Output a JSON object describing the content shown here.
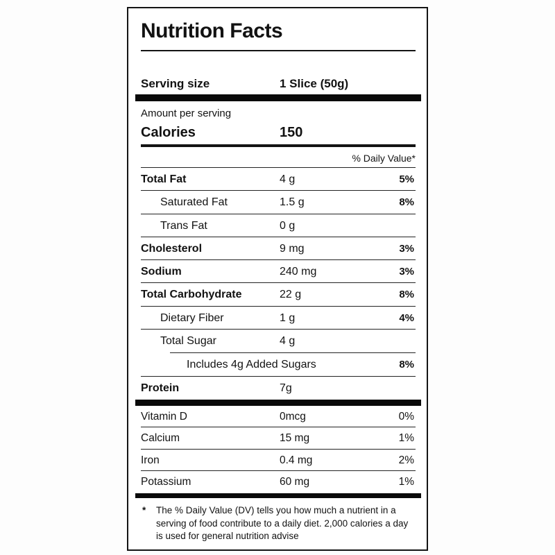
{
  "colors": {
    "ink": "#121212",
    "background": "#ffffff",
    "rule": "#141414"
  },
  "nutrition": {
    "title": "Nutrition Facts",
    "serving_label": "Serving size",
    "serving_value": "1 Slice (50g)",
    "amount_per_serving": "Amount per serving",
    "calories_label": "Calories",
    "calories_value": "150",
    "daily_value_header": "% Daily Value*",
    "rows": [
      {
        "label": "Total Fat",
        "value": "4 g",
        "pct": "5%"
      },
      {
        "label": "Saturated Fat",
        "value": "1.5 g",
        "pct": "8%"
      },
      {
        "label": "Trans Fat",
        "value": "0 g",
        "pct": ""
      },
      {
        "label": "Cholesterol",
        "value": "9 mg",
        "pct": "3%"
      },
      {
        "label": "Sodium",
        "value": "240 mg",
        "pct": "3%"
      },
      {
        "label": "Total Carbohydrate",
        "value": "22 g",
        "pct": "8%"
      },
      {
        "label": "Dietary Fiber",
        "value": "1 g",
        "pct": "4%"
      },
      {
        "label": "Total Sugar",
        "value": "4 g",
        "pct": ""
      },
      {
        "label": "Includes 4g Added Sugars",
        "value": "",
        "pct": "8%"
      },
      {
        "label": "Protein",
        "value": "7g",
        "pct": ""
      }
    ],
    "vitamins": [
      {
        "label": "Vitamin D",
        "value": "0mcg",
        "pct": "0%"
      },
      {
        "label": "Calcium",
        "value": "15 mg",
        "pct": "1%"
      },
      {
        "label": "Iron",
        "value": "0.4 mg",
        "pct": "2%"
      },
      {
        "label": "Potassium",
        "value": "60 mg",
        "pct": "1%"
      }
    ],
    "footnote_marker": "*",
    "footnote_text": "The % Daily Value (DV) tells you how much a nutrient in a serving of food contribute to a daily diet. 2,000 calories a day is used for general nutrition advise"
  }
}
